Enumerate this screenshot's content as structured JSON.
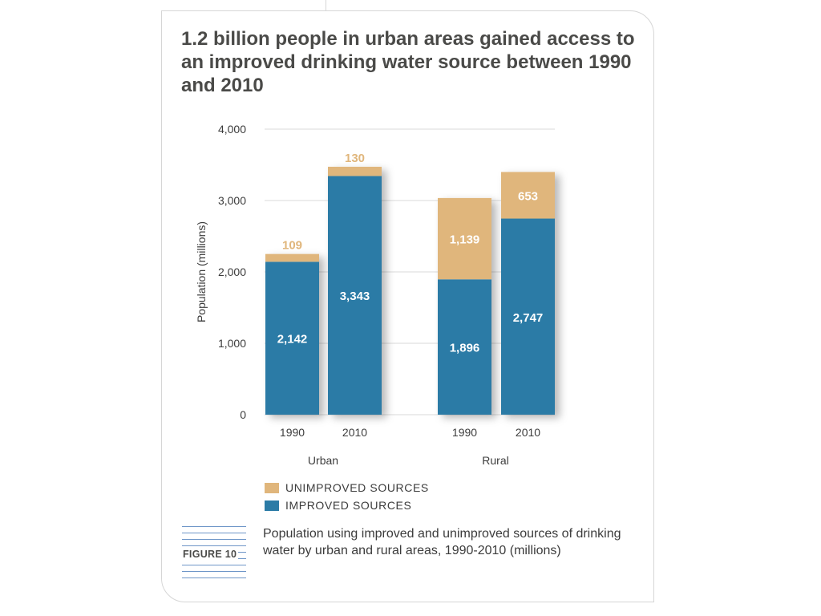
{
  "figure": {
    "title": "1.2 billion people in urban areas gained access to an improved drinking water source between 1990 and 2010",
    "label": "FIGURE 10",
    "caption": "Population using improved and unimproved sources of drinking water by urban and rural areas, 1990-2010 (millions)"
  },
  "colors": {
    "improved": "#2b7ba6",
    "unimproved": "#e0b67c",
    "grid": "#d9d9d9",
    "axis_text": "#3c3c3c"
  },
  "legend": [
    {
      "label": "UNIMPROVED SOURCES",
      "color": "#e0b67c"
    },
    {
      "label": "IMPROVED SOURCES",
      "color": "#2b7ba6"
    }
  ],
  "chart_data": {
    "type": "bar",
    "stacked": true,
    "ylabel": "Population (millions)",
    "ylim": [
      0,
      4000
    ],
    "yticks": [
      0,
      1000,
      2000,
      3000,
      4000
    ],
    "ytick_labels": [
      "0",
      "1,000",
      "2,000",
      "3,000",
      "4,000"
    ],
    "grid": true,
    "groups": [
      {
        "name": "Urban",
        "categories": [
          "1990",
          "2010"
        ]
      },
      {
        "name": "Rural",
        "categories": [
          "1990",
          "2010"
        ]
      }
    ],
    "series": [
      {
        "name": "IMPROVED SOURCES",
        "values": [
          2142,
          3343,
          1896,
          2747
        ],
        "labels": [
          "2,142",
          "3,343",
          "1,896",
          "2,747"
        ]
      },
      {
        "name": "UNIMPROVED SOURCES",
        "values": [
          109,
          130,
          1139,
          653
        ],
        "labels": [
          "109",
          "130",
          "1,139",
          "653"
        ]
      }
    ],
    "legend_position": "bottom-left"
  }
}
